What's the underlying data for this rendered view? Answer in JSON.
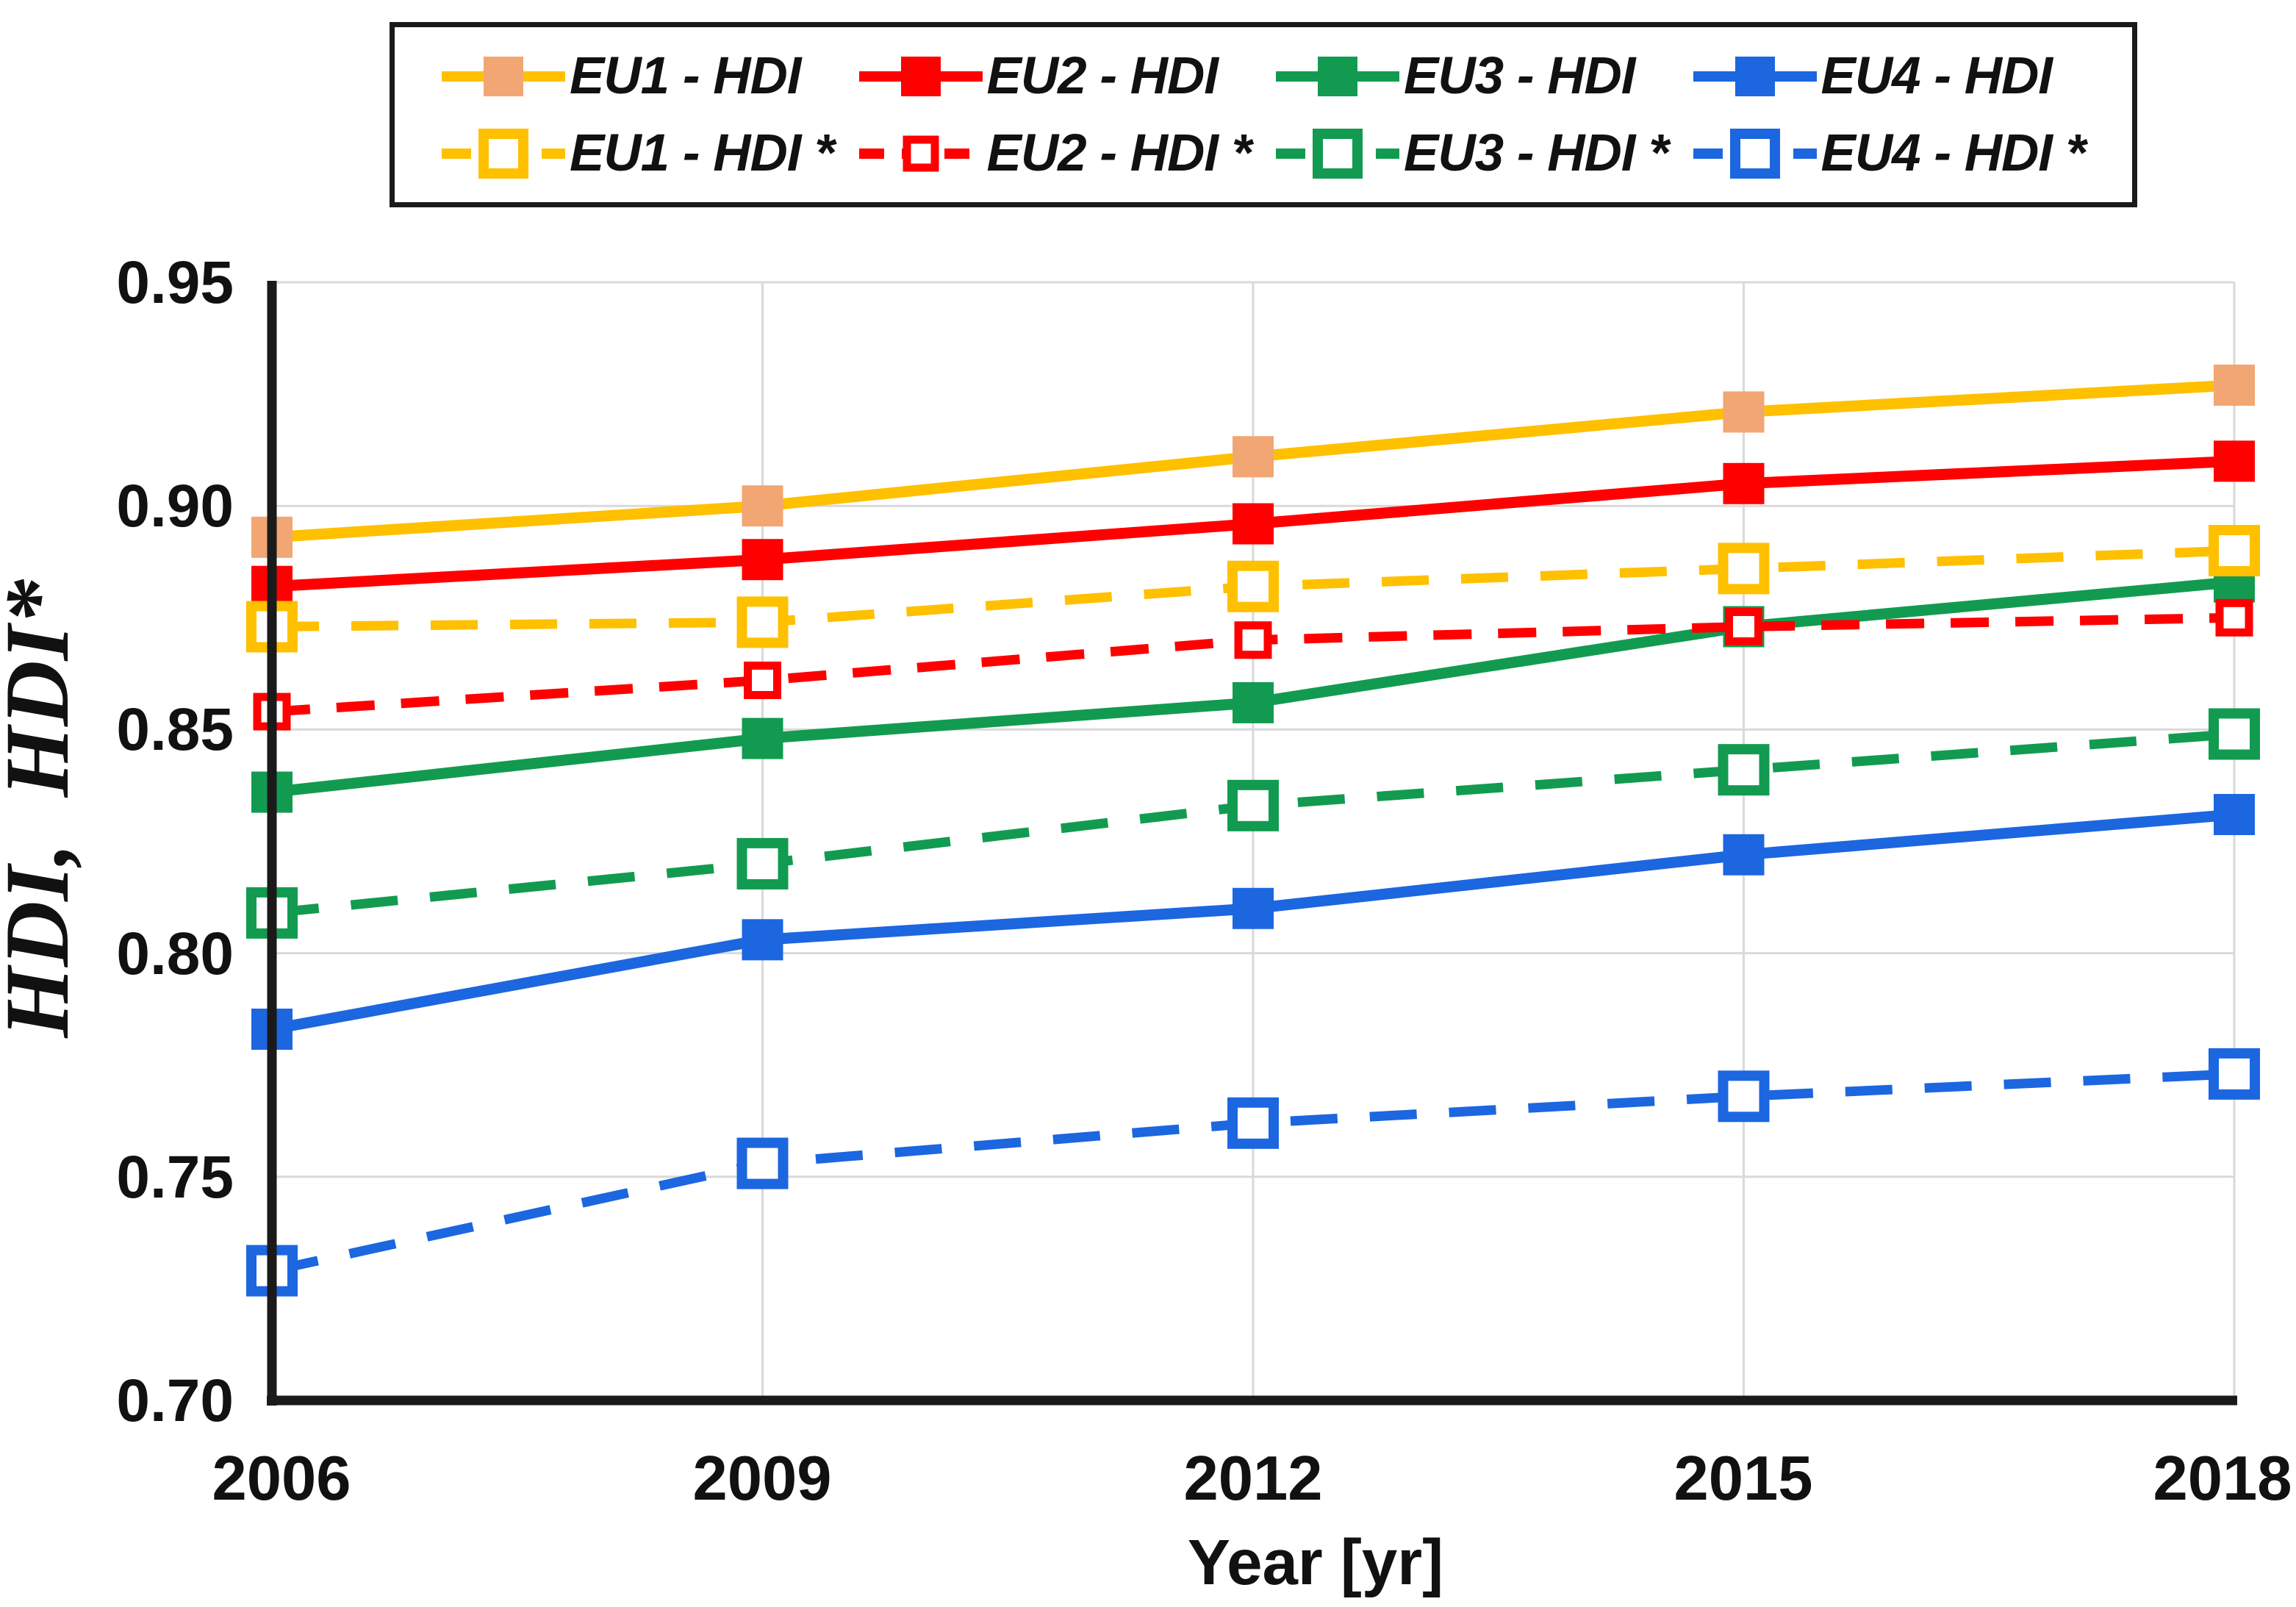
{
  "page": {
    "background": "#ffffff"
  },
  "chart_data": {
    "type": "line",
    "title": "",
    "xlabel": "Year [yr]",
    "ylabel": "HDI,  HDI*",
    "x": [
      2006,
      2009,
      2012,
      2015,
      2018
    ],
    "xtick_labels": [
      "2006",
      "2009",
      "2012",
      "2015",
      "2018"
    ],
    "ytick_labels": [
      "0.95",
      "0.90",
      "0.85",
      "0.80",
      "0.75",
      "0.70"
    ],
    "xlim": [
      2006,
      2018
    ],
    "ylim": [
      0.7,
      0.95
    ],
    "ytick_step": 0.05,
    "grid": true,
    "legend_position": "top",
    "colors": {
      "gold": "#FFC000",
      "tan": "#F2A673",
      "red": "#FE0000",
      "green": "#129B50",
      "blue": "#1C66E0",
      "gridline": "#D9D9D9",
      "axis": "#1A1A1A"
    },
    "series": [
      {
        "name": "EU1 - HDI",
        "values": [
          0.893,
          0.9,
          0.911,
          0.921,
          0.927
        ],
        "line_color": "#FFC000",
        "marker_color": "#F2A673",
        "dashed": false,
        "marker": "filled-square"
      },
      {
        "name": "EU2 - HDI",
        "values": [
          0.882,
          0.888,
          0.896,
          0.905,
          0.91
        ],
        "line_color": "#FE0000",
        "marker_color": "#FE0000",
        "dashed": false,
        "marker": "filled-square"
      },
      {
        "name": "EU3 - HDI",
        "values": [
          0.836,
          0.848,
          0.856,
          0.873,
          0.883
        ],
        "line_color": "#129B50",
        "marker_color": "#129B50",
        "dashed": false,
        "marker": "filled-square"
      },
      {
        "name": "EU4 - HDI",
        "values": [
          0.783,
          0.803,
          0.81,
          0.822,
          0.831
        ],
        "line_color": "#1C66E0",
        "marker_color": "#1C66E0",
        "dashed": false,
        "marker": "filled-square"
      },
      {
        "name": "EU1 - HDI *",
        "values": [
          0.873,
          0.874,
          0.882,
          0.886,
          0.89
        ],
        "line_color": "#FFC000",
        "marker_color": "#FFC000",
        "dashed": true,
        "marker": "open-square"
      },
      {
        "name": "EU2 - HDI *",
        "values": [
          0.854,
          0.861,
          0.87,
          0.873,
          0.875
        ],
        "line_color": "#FE0000",
        "marker_color": "#FE0000",
        "dashed": true,
        "marker": "open-square-small"
      },
      {
        "name": "EU3 - HDI *",
        "values": [
          0.809,
          0.82,
          0.833,
          0.841,
          0.849
        ],
        "line_color": "#129B50",
        "marker_color": "#129B50",
        "dashed": true,
        "marker": "open-square"
      },
      {
        "name": "EU4 - HDI *",
        "values": [
          0.729,
          0.753,
          0.762,
          0.768,
          0.773
        ],
        "line_color": "#1C66E0",
        "marker_color": "#1C66E0",
        "dashed": true,
        "marker": "open-square"
      }
    ]
  }
}
